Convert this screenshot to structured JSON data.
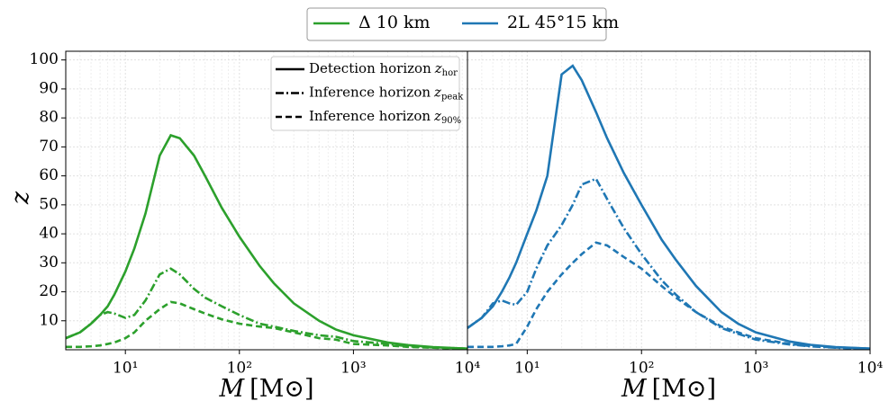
{
  "chart_data": [
    {
      "type": "line",
      "name": "Δ 10 km",
      "color": "#2ca02c",
      "xscale": "log",
      "xlim": [
        3,
        10000
      ],
      "ylim": [
        0,
        103
      ],
      "xticks": [
        {
          "value": 10,
          "label": "10¹"
        },
        {
          "value": 100,
          "label": "10²"
        },
        {
          "value": 1000,
          "label": "10³"
        },
        {
          "value": 10000,
          "label": "10⁴"
        }
      ],
      "yticks": [
        10,
        20,
        30,
        40,
        50,
        60,
        70,
        80,
        90,
        100
      ],
      "show_ytick_labels": true,
      "grid": true,
      "ylabel": "z",
      "xlabel_symbol": "M",
      "xlabel_unit": "[M⊙]",
      "line_styles": [
        {
          "label": "Detection horizon",
          "symbol": "z",
          "subscript": "hor",
          "dash": "solid"
        },
        {
          "label": "Inference horizon",
          "symbol": "z",
          "subscript": "peak",
          "dash": "dashdot"
        },
        {
          "label": "Inference horizon",
          "symbol": "z",
          "subscript": "90%",
          "dash": "dashed"
        }
      ],
      "x": [
        3,
        4,
        5,
        6,
        7,
        8,
        10,
        12,
        15,
        20,
        25,
        30,
        40,
        50,
        70,
        100,
        150,
        200,
        300,
        500,
        700,
        1000,
        2000,
        3000,
        5000,
        10000
      ],
      "series": [
        {
          "dash": "solid",
          "values": [
            4,
            6,
            9,
            12,
            15,
            19,
            27,
            35,
            47,
            67,
            74,
            73,
            67,
            60,
            49,
            39,
            29,
            23,
            16,
            10,
            7,
            5,
            2.5,
            1.6,
            0.9,
            0.4
          ]
        },
        {
          "dash": "dashdot",
          "values": [
            4,
            6,
            9,
            12,
            13,
            12.5,
            11,
            12,
            17,
            26,
            28,
            26,
            21,
            18,
            15,
            12,
            9,
            8,
            6.5,
            5,
            4.5,
            3,
            2,
            1.2,
            0.8,
            0.4
          ]
        },
        {
          "dash": "dashed",
          "values": [
            1,
            1,
            1.2,
            1.5,
            2,
            2.5,
            4,
            6,
            10,
            14,
            16.5,
            16,
            14,
            12.5,
            10.5,
            9,
            8,
            7.5,
            6,
            4,
            3.5,
            2,
            1.5,
            1,
            0.7,
            0.3
          ]
        }
      ]
    },
    {
      "type": "line",
      "name": "2L 45°15 km",
      "color": "#1f77b4",
      "xscale": "log",
      "xlim": [
        3,
        10000
      ],
      "ylim": [
        0,
        103
      ],
      "xticks": [
        {
          "value": 10,
          "label": "10¹"
        },
        {
          "value": 100,
          "label": "10²"
        },
        {
          "value": 1000,
          "label": "10³"
        },
        {
          "value": 10000,
          "label": "10⁴"
        }
      ],
      "yticks": [
        10,
        20,
        30,
        40,
        50,
        60,
        70,
        80,
        90,
        100
      ],
      "show_ytick_labels": false,
      "grid": true,
      "xlabel_symbol": "M",
      "xlabel_unit": "[M⊙]",
      "x": [
        3,
        4,
        5,
        6,
        7,
        8,
        10,
        12,
        15,
        20,
        25,
        30,
        40,
        50,
        70,
        100,
        150,
        200,
        300,
        500,
        700,
        1000,
        2000,
        3000,
        5000,
        10000
      ],
      "series": [
        {
          "dash": "solid",
          "values": [
            7.5,
            11,
            15,
            20,
            25,
            30,
            40,
            48,
            60,
            95,
            98,
            93,
            82,
            73,
            61,
            50,
            38,
            31,
            22,
            13,
            9,
            6,
            2.8,
            1.7,
            0.9,
            0.4
          ]
        },
        {
          "dash": "dashdot",
          "values": [
            7.5,
            11,
            16,
            17,
            16,
            15.5,
            20,
            28,
            36,
            43,
            50,
            57,
            59,
            52,
            42,
            33,
            24,
            19,
            13,
            7.5,
            5.5,
            3.5,
            1.8,
            1.2,
            0.7,
            0.3
          ]
        },
        {
          "dash": "dashed",
          "values": [
            1,
            1,
            1,
            1.2,
            1.5,
            2,
            8,
            14,
            20,
            26,
            30,
            33,
            37,
            36,
            32,
            28,
            22,
            18,
            13,
            8,
            6,
            4,
            2,
            1.3,
            0.8,
            0.4
          ]
        }
      ]
    }
  ]
}
